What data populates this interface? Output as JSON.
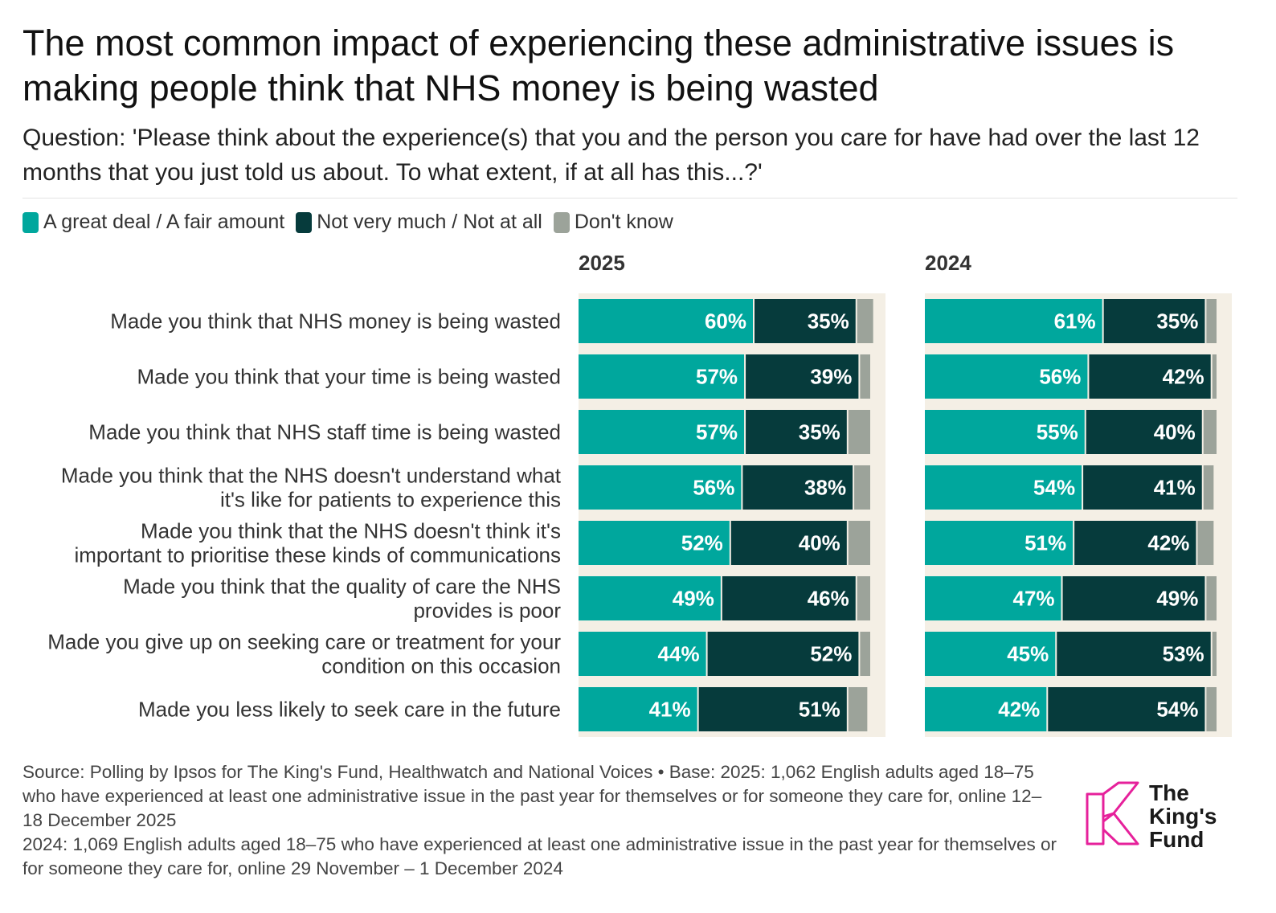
{
  "title": "The most common impact of experiencing these administrative issues is making people think that NHS money is being wasted",
  "subtitle": "Question: 'Please think about the experience(s) that you and the person you care for have had over the last 12 months that you just told us about. To what extent, if at all has this...?'",
  "legend": [
    {
      "label": "A great deal / A fair amount",
      "color": "#00a79d"
    },
    {
      "label": "Not very much / Not at all",
      "color": "#063b3c"
    },
    {
      "label": "Don't know",
      "color": "#9ca39a"
    }
  ],
  "source": {
    "line1": "Source: Polling by Ipsos for The King's Fund, Healthwatch and National Voices • Base: 2025: 1,062 English adults aged 18–75 who have experienced at least one administrative issue in the past year for themselves or for someone they care for, online 12–18 December 2025",
    "line2": "2024: 1,069 English adults aged 18–75 who have experienced at least one administrative issue in the past year for themselves or for someone they care for, online 29 November – 1 December 2024"
  },
  "logo": {
    "line1": "The",
    "line2": "King's",
    "line3": "Fund",
    "color": "#e6219b"
  },
  "chart_data": {
    "type": "bar",
    "orientation": "horizontal",
    "stacked": true,
    "xlim": [
      0,
      100
    ],
    "categories": [
      [
        "Made you think that NHS money is being wasted"
      ],
      [
        "Made you think that your time is being wasted"
      ],
      [
        "Made you think that NHS staff time is being wasted"
      ],
      [
        "Made you think that the NHS doesn't understand what",
        "it's like for patients to experience this"
      ],
      [
        "Made you think that the NHS doesn't think it's",
        "important to prioritise these kinds of communications"
      ],
      [
        "Made you think that the quality of care the NHS",
        "provides is poor"
      ],
      [
        "Made you give up on seeking care or treatment for your",
        "condition on this occasion"
      ],
      [
        "Made you less likely to seek care in the future"
      ]
    ],
    "panels": [
      {
        "title": "2025",
        "series": [
          {
            "name": "A great deal / A fair amount",
            "values": [
              60,
              57,
              57,
              56,
              52,
              49,
              44,
              41
            ]
          },
          {
            "name": "Not very much / Not at all",
            "values": [
              35,
              39,
              35,
              38,
              40,
              46,
              52,
              51
            ]
          },
          {
            "name": "Don't know",
            "values": [
              6,
              4,
              8,
              6,
              8,
              5,
              4,
              7
            ]
          }
        ]
      },
      {
        "title": "2024",
        "series": [
          {
            "name": "A great deal / A fair amount",
            "values": [
              61,
              56,
              55,
              54,
              51,
              47,
              45,
              42
            ]
          },
          {
            "name": "Not very much / Not at all",
            "values": [
              35,
              42,
              40,
              41,
              42,
              49,
              53,
              54
            ]
          },
          {
            "name": "Don't know",
            "values": [
              4,
              2,
              5,
              4,
              6,
              4,
              2,
              4
            ]
          }
        ]
      }
    ],
    "value_suffix": "%",
    "panel_background": "#f4efe5"
  }
}
